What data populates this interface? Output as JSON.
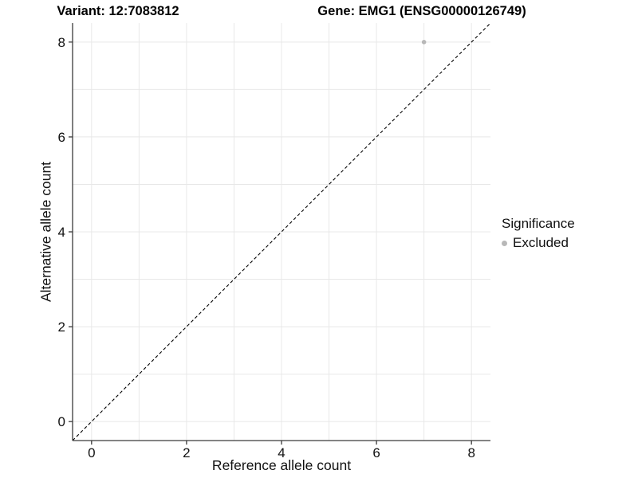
{
  "chart_data": {
    "type": "scatter",
    "titles": {
      "left": "Variant: 12:7083812",
      "right": "Gene: EMG1 (ENSG00000126749)"
    },
    "xlabel": "Reference allele count",
    "ylabel": "Alternative allele count",
    "xlim": [
      -0.4,
      8.4
    ],
    "ylim": [
      -0.4,
      8.4
    ],
    "x_ticks": [
      0,
      2,
      4,
      6,
      8
    ],
    "y_ticks": [
      0,
      2,
      4,
      6,
      8
    ],
    "x_gridlines": [
      0,
      1,
      2,
      3,
      4,
      5,
      6,
      7,
      8
    ],
    "y_gridlines": [
      0,
      1,
      2,
      3,
      4,
      5,
      6,
      7,
      8
    ],
    "grid": true,
    "legend_position": "right",
    "legend": {
      "title": "Significance",
      "items": [
        {
          "label": "Excluded",
          "color": "#b8b8b8"
        }
      ]
    },
    "series": [
      {
        "name": "Excluded",
        "color": "#b8b8b8",
        "points": [
          {
            "x": 7,
            "y": 8
          }
        ]
      }
    ],
    "reference_line": {
      "type": "abline",
      "slope": 1,
      "intercept": 0,
      "style": "dashed",
      "color": "#000000"
    }
  },
  "colors": {
    "background": "#ffffff",
    "grid": "#e8e8e8",
    "axis": "#3a3a3a",
    "tick_text": "#111111"
  }
}
